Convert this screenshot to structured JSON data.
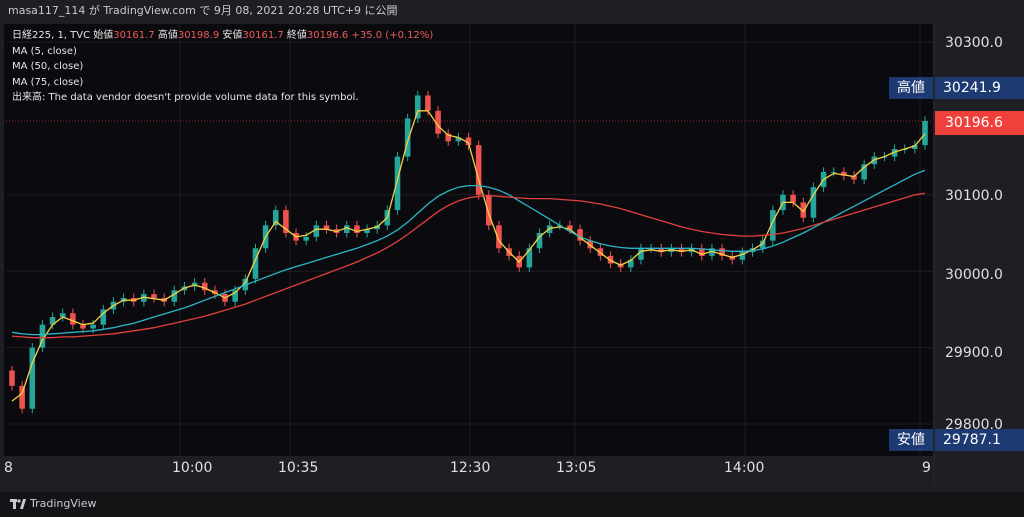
{
  "header": {
    "text": "masa117_114 が TradingView.com で 9月 08, 2021 20:28 UTC+9 に公開"
  },
  "legend": {
    "line1_prefix": "日経225, 1, TVC  始値",
    "open": "30161.7",
    "high_label": "高値",
    "high": "30198.9",
    "low_label": "安値",
    "low": "30161.7",
    "close_label": "終値",
    "close": "30196.6",
    "change": "+35.0 (+0.12%)",
    "ma5": "MA (5, close)",
    "ma50": "MA (50, close)",
    "ma75": "MA (75, close)",
    "volume": "出来高: The data vendor doesn't provide volume data for this symbol."
  },
  "badges": {
    "high_label": "高値",
    "high_value": "30241.9",
    "low_label": "安値",
    "low_value": "29787.1",
    "last_value": "30196.6"
  },
  "footer": {
    "brand": "TradingView"
  },
  "colors": {
    "up": "#26a69a",
    "down": "#ef5350",
    "ma5": "#f5d142",
    "ma50": "#2cb5c8",
    "ma75": "#e0413c"
  },
  "chart_data": {
    "type": "line",
    "title": "日経225, 1, TVC",
    "y_ticks": [
      "30300.0",
      "30100.0",
      "30000.0",
      "29900.0",
      "29800.0"
    ],
    "y_tick_values": [
      30300,
      30100,
      30000,
      29900,
      29800
    ],
    "ylim": [
      29780,
      30330
    ],
    "x_ticks": [
      "8",
      "10:00",
      "10:35",
      "12:30",
      "13:05",
      "14:00",
      "9"
    ],
    "high": 30241.9,
    "low": 29787.1,
    "last": 30196.6,
    "series": [
      {
        "name": "日経225 (close)",
        "values": [
          29850,
          29820,
          29900,
          29930,
          29940,
          29945,
          29930,
          29925,
          29930,
          29950,
          29960,
          29965,
          29960,
          29970,
          29965,
          29960,
          29975,
          29980,
          29985,
          29975,
          29970,
          29960,
          29975,
          29990,
          30030,
          30060,
          30080,
          30050,
          30040,
          30045,
          30060,
          30055,
          30050,
          30060,
          30050,
          30055,
          30060,
          30080,
          30150,
          30200,
          30230,
          30210,
          30180,
          30170,
          30175,
          30165,
          30100,
          30060,
          30030,
          30020,
          30005,
          30030,
          30050,
          30060,
          30060,
          30055,
          30040,
          30030,
          30020,
          30010,
          30005,
          30015,
          30030,
          30030,
          30025,
          30030,
          30025,
          30030,
          30020,
          30030,
          30020,
          30015,
          30025,
          30030,
          30040,
          30080,
          30100,
          30090,
          30070,
          30110,
          30130,
          30130,
          30125,
          30120,
          30140,
          30150,
          30150,
          30160,
          30160,
          30165,
          30196.6
        ]
      },
      {
        "name": "MA (5, close)",
        "values": [
          29830,
          29840,
          29880,
          29910,
          29930,
          29940,
          29935,
          29930,
          29932,
          29945,
          29955,
          29962,
          29962,
          29966,
          29964,
          29962,
          29970,
          29978,
          29982,
          29978,
          29972,
          29965,
          29972,
          29985,
          30015,
          30045,
          30065,
          30055,
          30045,
          30047,
          30055,
          30055,
          30052,
          30057,
          30052,
          30055,
          30058,
          30070,
          30120,
          30170,
          30210,
          30210,
          30190,
          30178,
          30175,
          30168,
          30120,
          30075,
          30040,
          30025,
          30012,
          30028,
          30045,
          30056,
          30058,
          30055,
          30044,
          30034,
          30024,
          30014,
          30008,
          30014,
          30026,
          30028,
          30026,
          30028,
          30026,
          30028,
          30022,
          30026,
          30022,
          30018,
          30022,
          30028,
          30036,
          30065,
          30090,
          30090,
          30078,
          30100,
          30120,
          30128,
          30126,
          30124,
          30136,
          30146,
          30150,
          30156,
          30160,
          30164,
          30180
        ]
      },
      {
        "name": "MA (50, close)",
        "values": [
          29920,
          29918,
          29917,
          29917,
          29918,
          29919,
          29920,
          29921,
          29922,
          29924,
          29926,
          29929,
          29932,
          29936,
          29940,
          29944,
          29948,
          29952,
          29957,
          29962,
          29967,
          29972,
          29977,
          29982,
          29987,
          29992,
          29997,
          30002,
          30006,
          30010,
          30014,
          30018,
          30022,
          30026,
          30030,
          30035,
          30040,
          30046,
          30054,
          30064,
          30076,
          30088,
          30098,
          30105,
          30110,
          30112,
          30112,
          30110,
          30106,
          30100,
          30092,
          30084,
          30076,
          30068,
          30060,
          30052,
          30045,
          30040,
          30036,
          30033,
          30031,
          30030,
          30030,
          30030,
          30030,
          30030,
          30030,
          30030,
          30029,
          30028,
          30027,
          30026,
          30026,
          30027,
          30029,
          30033,
          30038,
          30044,
          30050,
          30057,
          30064,
          30071,
          30078,
          30085,
          30092,
          30099,
          30106,
          30113,
          30120,
          30127,
          30132
        ]
      },
      {
        "name": "MA (75, close)",
        "values": [
          29915,
          29914,
          29913,
          29913,
          29913,
          29914,
          29914,
          29915,
          29916,
          29917,
          29918,
          29920,
          29922,
          29924,
          29926,
          29929,
          29932,
          29935,
          29938,
          29941,
          29945,
          29949,
          29953,
          29957,
          29962,
          29967,
          29972,
          29977,
          29982,
          29987,
          29992,
          29997,
          30002,
          30007,
          30012,
          30018,
          30024,
          30031,
          30039,
          30048,
          30058,
          30068,
          30078,
          30086,
          30092,
          30096,
          30098,
          30099,
          30098,
          30097,
          30096,
          30095,
          30095,
          30095,
          30094,
          30093,
          30092,
          30090,
          30088,
          30085,
          30082,
          30078,
          30074,
          30070,
          30066,
          30062,
          30058,
          30055,
          30052,
          30050,
          30048,
          30047,
          30046,
          30046,
          30047,
          30048,
          30050,
          30053,
          30056,
          30060,
          30064,
          30068,
          30072,
          30076,
          30080,
          30084,
          30088,
          30092,
          30096,
          30100,
          30102
        ]
      }
    ]
  }
}
